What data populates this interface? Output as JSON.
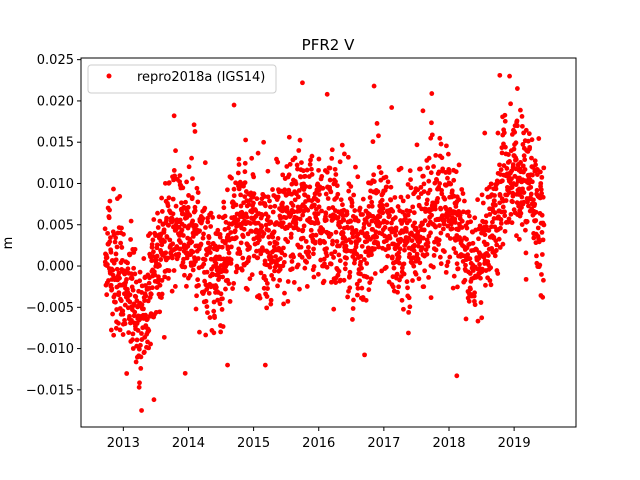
{
  "chart_data": {
    "type": "scatter",
    "title": "PFR2 V",
    "xlabel": "",
    "ylabel": "m",
    "xlim": [
      2012.35,
      2019.95
    ],
    "ylim": [
      -0.0195,
      0.0252
    ],
    "xticks": [
      2013,
      2014,
      2015,
      2016,
      2017,
      2018,
      2019
    ],
    "xtick_labels": [
      "2013",
      "2014",
      "2015",
      "2016",
      "2017",
      "2018",
      "2019"
    ],
    "yticks": [
      -0.015,
      -0.01,
      -0.005,
      0.0,
      0.005,
      0.01,
      0.015,
      0.02,
      0.025
    ],
    "ytick_labels": [
      "−0.015",
      "−0.010",
      "−0.005",
      "0.000",
      "0.005",
      "0.010",
      "0.015",
      "0.020",
      "0.025"
    ],
    "grid": false,
    "legend_position": "top-left",
    "series": [
      {
        "name": "repro2018a (IGS14)",
        "color": "#ff0000",
        "marker": "circle",
        "x_start": 2012.72,
        "x_end": 2019.46,
        "trend": [
          [
            2012.72,
            0.0015
          ],
          [
            2013.0,
            -0.002
          ],
          [
            2013.3,
            -0.007
          ],
          [
            2013.5,
            0.0
          ],
          [
            2013.8,
            0.006
          ],
          [
            2014.2,
            0.002
          ],
          [
            2014.5,
            -0.001
          ],
          [
            2014.8,
            0.007
          ],
          [
            2015.2,
            0.003
          ],
          [
            2015.6,
            0.005
          ],
          [
            2016.0,
            0.006
          ],
          [
            2016.4,
            0.004
          ],
          [
            2016.7,
            0.002
          ],
          [
            2016.9,
            0.007
          ],
          [
            2017.2,
            0.002
          ],
          [
            2017.6,
            0.005
          ],
          [
            2017.9,
            0.008
          ],
          [
            2018.1,
            0.005
          ],
          [
            2018.3,
            0.0
          ],
          [
            2018.6,
            0.003
          ],
          [
            2018.9,
            0.011
          ],
          [
            2019.2,
            0.01
          ],
          [
            2019.46,
            0.005
          ]
        ],
        "spread_std": 0.0038,
        "outliers": [
          [
            2013.28,
            -0.0175
          ],
          [
            2013.95,
            -0.013
          ],
          [
            2014.6,
            -0.012
          ],
          [
            2015.18,
            -0.012
          ],
          [
            2018.12,
            -0.0133
          ],
          [
            2015.75,
            0.0222
          ],
          [
            2016.13,
            0.0208
          ],
          [
            2016.85,
            0.0218
          ],
          [
            2017.6,
            0.0188
          ],
          [
            2018.78,
            0.0231
          ],
          [
            2018.93,
            0.023
          ],
          [
            2019.05,
            0.0215
          ],
          [
            2014.7,
            0.0195
          ],
          [
            2013.78,
            0.0182
          ],
          [
            2014.1,
            0.0163
          ],
          [
            2017.12,
            0.0192
          ]
        ]
      }
    ]
  }
}
